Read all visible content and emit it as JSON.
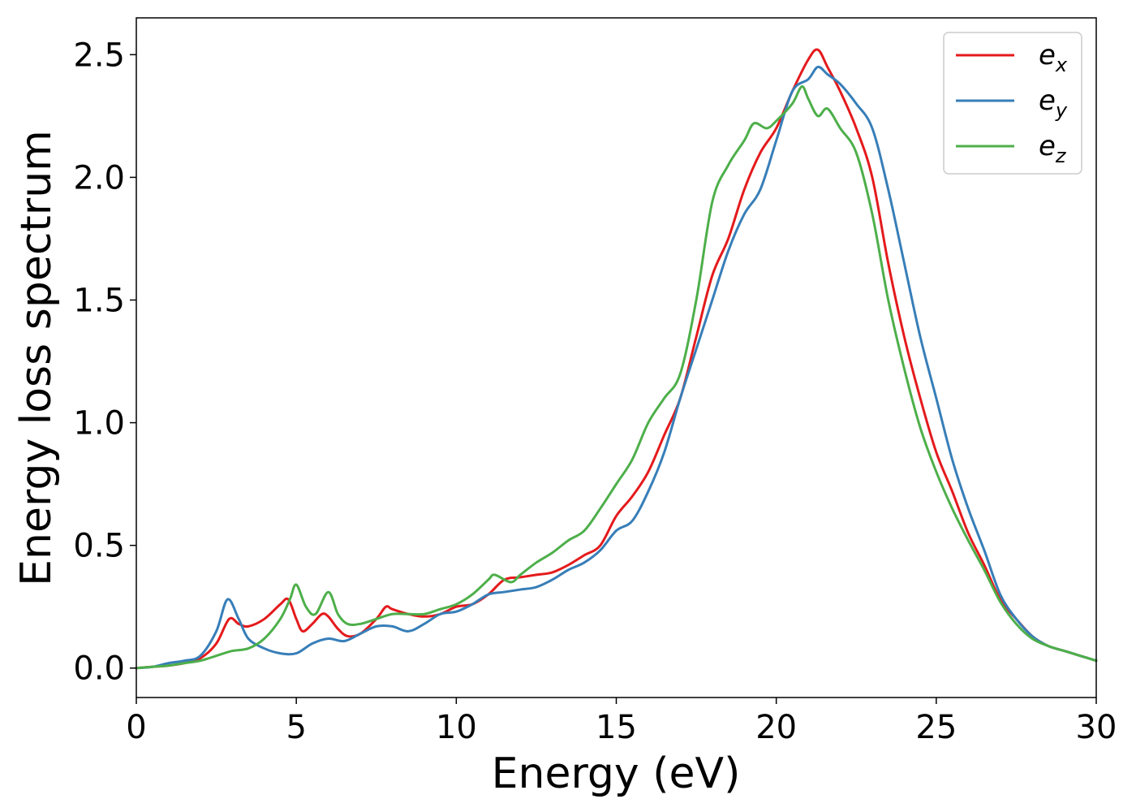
{
  "chart_data": {
    "type": "line",
    "title": "",
    "xlabel": "Energy (eV)",
    "ylabel": "Energy loss spectrum",
    "xlim": [
      0,
      30
    ],
    "ylim": [
      -0.12,
      2.65
    ],
    "xticks": [
      0,
      5,
      10,
      15,
      20,
      25,
      30
    ],
    "yticks": [
      0.0,
      0.5,
      1.0,
      1.5,
      2.0,
      2.5
    ],
    "xtick_labels": [
      "0",
      "5",
      "10",
      "15",
      "20",
      "25",
      "30"
    ],
    "ytick_labels": [
      "0.0",
      "0.5",
      "1.0",
      "1.5",
      "2.0",
      "2.5"
    ],
    "grid": false,
    "legend_position": "top-right",
    "series": [
      {
        "name": "e",
        "subscript": "x",
        "color": "#e41a1c",
        "x": [
          0,
          0.5,
          1,
          1.5,
          2,
          2.5,
          2.9,
          3.2,
          3.5,
          4,
          4.5,
          4.75,
          5,
          5.2,
          5.5,
          5.8,
          6,
          6.3,
          6.6,
          7,
          7.5,
          7.8,
          8,
          8.5,
          9,
          9.5,
          10,
          10.5,
          11,
          11.5,
          12,
          12.5,
          13,
          13.5,
          14,
          14.5,
          15,
          15.5,
          16,
          16.5,
          17,
          17.5,
          18,
          18.5,
          19,
          19.5,
          20,
          20.5,
          21,
          21.3,
          21.6,
          22,
          22.5,
          23,
          23.5,
          24,
          24.5,
          25,
          25.5,
          26,
          26.5,
          27,
          27.5,
          28,
          28.5,
          29,
          29.5,
          30
        ],
        "y": [
          0,
          0.005,
          0.01,
          0.02,
          0.04,
          0.1,
          0.2,
          0.18,
          0.17,
          0.2,
          0.26,
          0.28,
          0.2,
          0.15,
          0.18,
          0.22,
          0.21,
          0.16,
          0.13,
          0.14,
          0.2,
          0.25,
          0.24,
          0.22,
          0.21,
          0.22,
          0.25,
          0.26,
          0.3,
          0.36,
          0.37,
          0.38,
          0.39,
          0.42,
          0.46,
          0.5,
          0.62,
          0.7,
          0.8,
          0.95,
          1.1,
          1.35,
          1.6,
          1.75,
          1.95,
          2.1,
          2.2,
          2.35,
          2.48,
          2.52,
          2.45,
          2.35,
          2.2,
          2.0,
          1.65,
          1.35,
          1.1,
          0.88,
          0.72,
          0.55,
          0.42,
          0.28,
          0.2,
          0.13,
          0.09,
          0.07,
          0.05,
          0.03
        ]
      },
      {
        "name": "e",
        "subscript": "y",
        "color": "#377eb8",
        "x": [
          0,
          0.5,
          1,
          1.5,
          2,
          2.5,
          2.85,
          3.2,
          3.5,
          4,
          4.5,
          5,
          5.5,
          6,
          6.5,
          7,
          7.5,
          8,
          8.5,
          9,
          9.5,
          10,
          10.5,
          11,
          11.5,
          12,
          12.5,
          13,
          13.5,
          14,
          14.5,
          15,
          15.5,
          16,
          16.5,
          17,
          17.5,
          18,
          18.5,
          19,
          19.5,
          20,
          20.5,
          21,
          21.3,
          21.6,
          22,
          22.5,
          23,
          23.5,
          24,
          24.5,
          25,
          25.5,
          26,
          26.5,
          27,
          27.5,
          28,
          28.5,
          29,
          29.5,
          30
        ],
        "y": [
          0,
          0.005,
          0.02,
          0.03,
          0.05,
          0.15,
          0.28,
          0.2,
          0.12,
          0.08,
          0.06,
          0.06,
          0.1,
          0.12,
          0.11,
          0.14,
          0.17,
          0.17,
          0.15,
          0.18,
          0.22,
          0.23,
          0.26,
          0.3,
          0.31,
          0.32,
          0.33,
          0.36,
          0.4,
          0.43,
          0.48,
          0.56,
          0.6,
          0.72,
          0.88,
          1.1,
          1.3,
          1.5,
          1.7,
          1.85,
          1.95,
          2.15,
          2.35,
          2.4,
          2.45,
          2.42,
          2.38,
          2.3,
          2.2,
          1.95,
          1.65,
          1.35,
          1.1,
          0.85,
          0.65,
          0.48,
          0.3,
          0.2,
          0.13,
          0.09,
          0.07,
          0.05,
          0.03
        ]
      },
      {
        "name": "e",
        "subscript": "z",
        "color": "#4daf4a",
        "x": [
          0,
          0.5,
          1,
          1.5,
          2,
          2.5,
          3,
          3.5,
          4,
          4.5,
          4.8,
          5,
          5.3,
          5.6,
          6,
          6.3,
          6.6,
          7,
          7.5,
          8,
          8.5,
          9,
          9.5,
          10,
          10.5,
          11,
          11.2,
          11.7,
          12,
          12.5,
          13,
          13.5,
          14,
          14.5,
          15,
          15.5,
          16,
          16.5,
          17,
          17.5,
          18,
          18.5,
          19,
          19.3,
          19.7,
          20,
          20.5,
          20.8,
          21,
          21.3,
          21.6,
          22,
          22.5,
          23,
          23.5,
          24,
          24.5,
          25,
          25.5,
          26,
          26.5,
          27,
          27.5,
          28,
          28.5,
          29,
          29.5,
          30
        ],
        "y": [
          0,
          0.005,
          0.01,
          0.02,
          0.03,
          0.05,
          0.07,
          0.08,
          0.12,
          0.2,
          0.28,
          0.34,
          0.25,
          0.22,
          0.31,
          0.22,
          0.18,
          0.18,
          0.2,
          0.22,
          0.22,
          0.22,
          0.24,
          0.26,
          0.3,
          0.36,
          0.38,
          0.35,
          0.38,
          0.43,
          0.47,
          0.52,
          0.56,
          0.65,
          0.75,
          0.85,
          1.0,
          1.1,
          1.2,
          1.5,
          1.9,
          2.05,
          2.15,
          2.22,
          2.2,
          2.23,
          2.3,
          2.37,
          2.32,
          2.25,
          2.28,
          2.2,
          2.1,
          1.85,
          1.5,
          1.22,
          0.98,
          0.8,
          0.65,
          0.52,
          0.4,
          0.27,
          0.18,
          0.12,
          0.09,
          0.07,
          0.05,
          0.03
        ]
      }
    ]
  }
}
